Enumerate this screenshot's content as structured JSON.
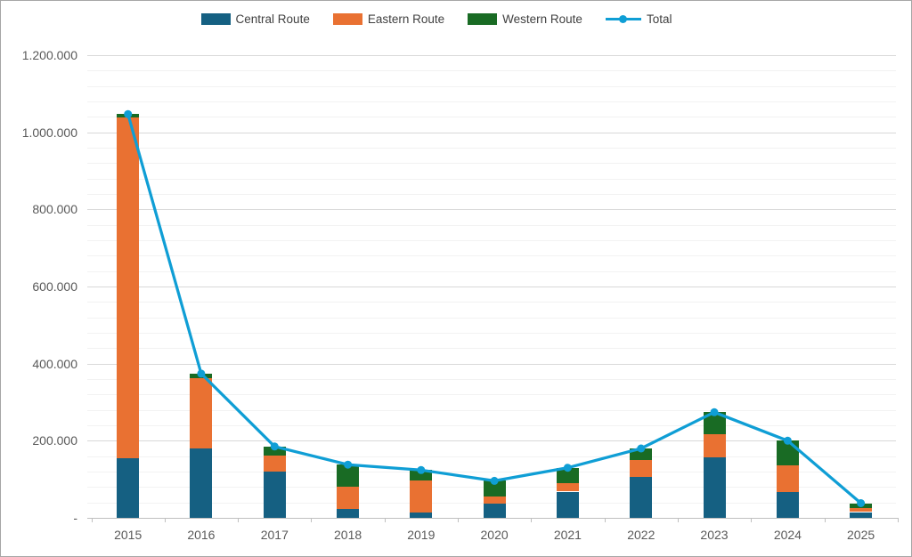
{
  "chart_data": {
    "type": "bar",
    "bar_mode": "stacked",
    "title": "",
    "xlabel": "",
    "ylabel": "",
    "categories": [
      "2015",
      "2016",
      "2017",
      "2018",
      "2019",
      "2020",
      "2021",
      "2022",
      "2023",
      "2024",
      "2025"
    ],
    "series": [
      {
        "name": "Central Route",
        "type": "bar",
        "color": "#156082",
        "values": [
          154000,
          181000,
          119000,
          23000,
          14000,
          36000,
          68000,
          106000,
          157000,
          67000,
          15000
        ]
      },
      {
        "name": "Eastern Route",
        "type": "bar",
        "color": "#E97132",
        "values": [
          885000,
          182000,
          42000,
          57000,
          83000,
          20000,
          21000,
          44000,
          60000,
          69000,
          10000
        ]
      },
      {
        "name": "Western Route",
        "type": "bar",
        "color": "#196B24",
        "values": [
          8000,
          11000,
          24000,
          58000,
          27000,
          40000,
          41000,
          30000,
          57000,
          64000,
          13000
        ]
      },
      {
        "name": "Total",
        "type": "line",
        "color": "#0F9ED5",
        "values": [
          1047000,
          374000,
          185000,
          138000,
          124000,
          96000,
          130000,
          180000,
          274000,
          200000,
          38000
        ]
      }
    ],
    "ylim": [
      0,
      1200000
    ],
    "y_major_step": 200000,
    "y_minor_step": 40000,
    "y_tick_labels": [
      "-",
      "200.000",
      "400.000",
      "600.000",
      "800.000",
      "1.000.000",
      "1.200.000"
    ],
    "legend_position": "top-center",
    "grid": "horizontal-major-and-minor",
    "number_format": "thousands separated by dots, zero shown as dash"
  },
  "colors": {
    "central_route": "#156082",
    "eastern_route": "#E97132",
    "western_route": "#196B24",
    "total_line": "#0F9ED5",
    "major_gridline": "#D9D9D9",
    "minor_gridline": "#F2F2F2",
    "axis_line": "#BFBFBF",
    "axis_text": "#595959",
    "legend_text": "#404040",
    "frame_border": "#A6A6A6"
  }
}
